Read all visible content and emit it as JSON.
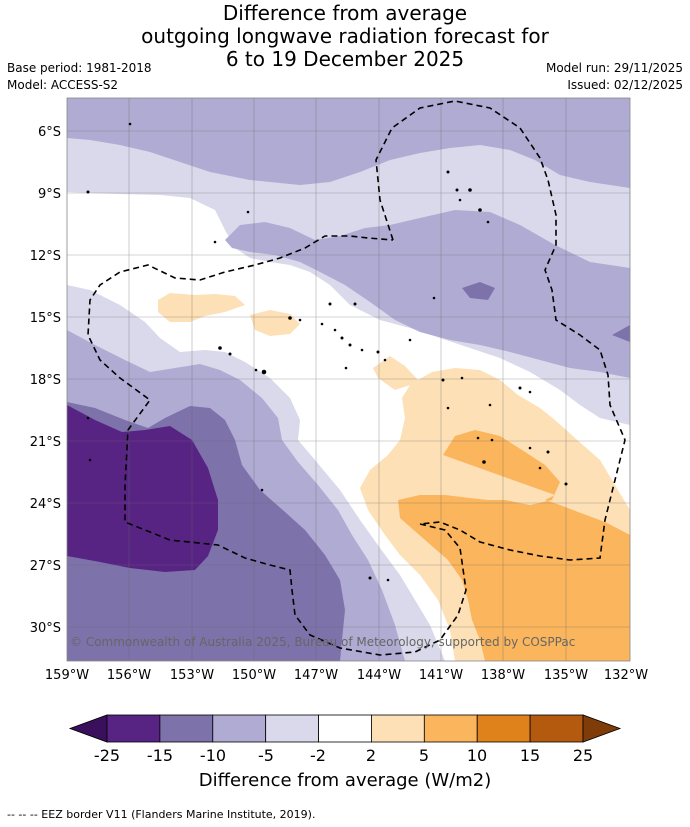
{
  "header": {
    "title_lines": [
      "Difference from average",
      "outgoing longwave radiation forecast for",
      "6 to 19 December 2025"
    ],
    "base_period": "Base period: 1981-2018",
    "model": "Model: ACCESS-S2",
    "model_run": "Model run: 29/11/2025",
    "issued": "Issued: 02/12/2025"
  },
  "map": {
    "lon_labels": [
      "159°W",
      "156°W",
      "153°W",
      "150°W",
      "147°W",
      "144°W",
      "141°W",
      "138°W",
      "135°W",
      "132°W"
    ],
    "lat_labels": [
      "6°S",
      "9°S",
      "12°S",
      "15°S",
      "18°S",
      "21°S",
      "24°S",
      "27°S",
      "30°S"
    ],
    "lon_range": [
      -159,
      -132
    ],
    "lat_range": [
      -4.4,
      -31.5
    ],
    "copyright": "© Commonwealth of Australia 2025, Bureau of Meteorology, supported by COSPPac"
  },
  "colorbar": {
    "ticks": [
      "-25",
      "-15",
      "-10",
      "-5",
      "-2",
      "2",
      "5",
      "10",
      "15",
      "25"
    ],
    "colors": {
      "below": "#3a0f5c",
      "bins": [
        "#582484",
        "#7e72ab",
        "#b0abd2",
        "#d9d9eb",
        "#ffffff",
        "#fde0b6",
        "#fbb55c",
        "#e0821c",
        "#b35a0e"
      ],
      "above": "#7f3b08"
    },
    "label": "Difference from average (W/m2)"
  },
  "footer": {
    "legend_text": "--  --  -- EEZ border V11 (Flanders Marine Institute, 2019)."
  }
}
